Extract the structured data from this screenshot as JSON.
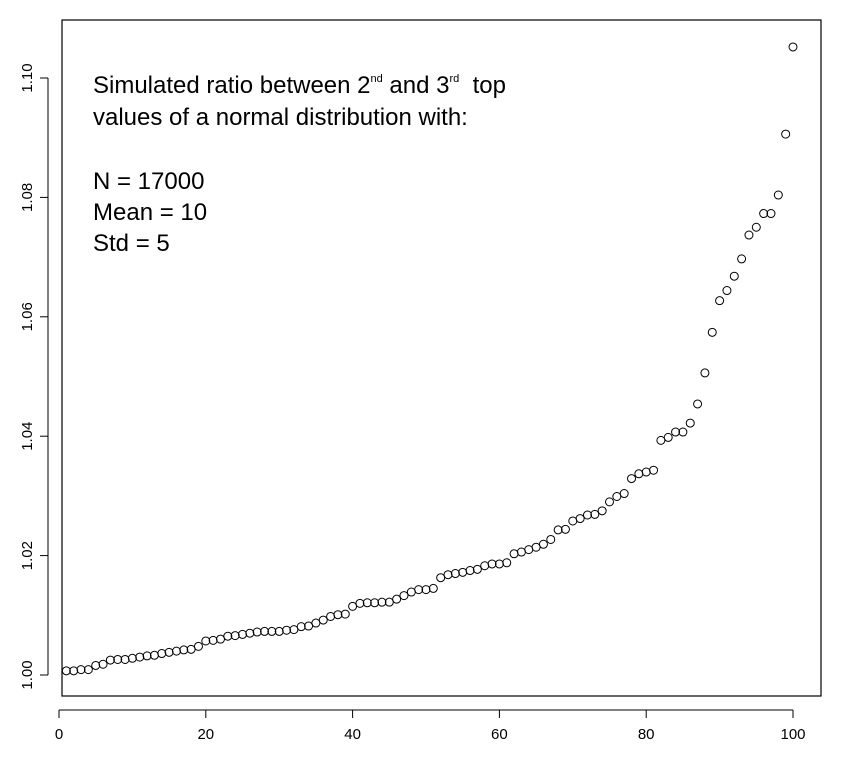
{
  "chart_data": {
    "type": "scatter",
    "title": "",
    "xlabel": "",
    "ylabel": "",
    "xlim": [
      0,
      100
    ],
    "ylim": [
      1.0,
      1.1
    ],
    "xticks": [
      "0",
      "20",
      "40",
      "60",
      "80",
      "100"
    ],
    "yticks": [
      "1.00",
      "1.02",
      "1.04",
      "1.06",
      "1.08",
      "1.10"
    ],
    "grid": false,
    "marker": "open-circle",
    "marker_color": "#000000",
    "annotation": {
      "line1_a": "Simulated ratio between 2",
      "line1_sup1": "nd",
      "line1_b": " and 3",
      "line1_sup2": "rd",
      "line1_c": "  top",
      "line2": "values of a normal distribution with:",
      "line3": "N = 17000",
      "line4": "Mean = 10",
      "line5": "Std = 5"
    },
    "series": [
      {
        "x": [
          1,
          2,
          3,
          4,
          5,
          6,
          7,
          8,
          9,
          10,
          11,
          12,
          13,
          14,
          15,
          16,
          17,
          18,
          19,
          20,
          21,
          22,
          23,
          24,
          25,
          26,
          27,
          28,
          29,
          30,
          31,
          32,
          33,
          34,
          35,
          36,
          37,
          38,
          39,
          40,
          41,
          42,
          43,
          44,
          45,
          46,
          47,
          48,
          49,
          50,
          51,
          52,
          53,
          54,
          55,
          56,
          57,
          58,
          59,
          60,
          61,
          62,
          63,
          64,
          65,
          66,
          67,
          68,
          69,
          70,
          71,
          72,
          73,
          74,
          75,
          76,
          77,
          78,
          79,
          80,
          81,
          82,
          83,
          84,
          85,
          86,
          87,
          88,
          89,
          90,
          91,
          92,
          93,
          94,
          95,
          96,
          97,
          98,
          99,
          100
        ],
        "y": [
          1.0007,
          1.0007,
          1.0009,
          1.0009,
          1.0016,
          1.0018,
          1.0025,
          1.0026,
          1.0026,
          1.0028,
          1.003,
          1.0032,
          1.0033,
          1.0036,
          1.0038,
          1.004,
          1.0042,
          1.0043,
          1.0048,
          1.0057,
          1.0058,
          1.006,
          1.0065,
          1.0066,
          1.0068,
          1.007,
          1.0072,
          1.0073,
          1.0073,
          1.0073,
          1.0075,
          1.0076,
          1.0081,
          1.0082,
          1.0087,
          1.0092,
          1.0098,
          1.0101,
          1.0102,
          1.0115,
          1.012,
          1.0121,
          1.0121,
          1.0122,
          1.0122,
          1.0127,
          1.0133,
          1.0139,
          1.0143,
          1.0143,
          1.0145,
          1.0163,
          1.0168,
          1.017,
          1.0172,
          1.0175,
          1.0177,
          1.0183,
          1.0186,
          1.0186,
          1.0188,
          1.0203,
          1.0206,
          1.021,
          1.0214,
          1.0219,
          1.0227,
          1.0243,
          1.0244,
          1.0258,
          1.0262,
          1.0268,
          1.0269,
          1.0275,
          1.029,
          1.0299,
          1.0304,
          1.0329,
          1.0337,
          1.034,
          1.0343,
          1.0393,
          1.0398,
          1.0407,
          1.0407,
          1.0422,
          1.0454,
          1.0506,
          1.0574,
          1.0627,
          1.0644,
          1.0668,
          1.0697,
          1.0737,
          1.075,
          1.0773,
          1.0773,
          1.0804,
          1.0906,
          1.1052
        ]
      }
    ]
  }
}
